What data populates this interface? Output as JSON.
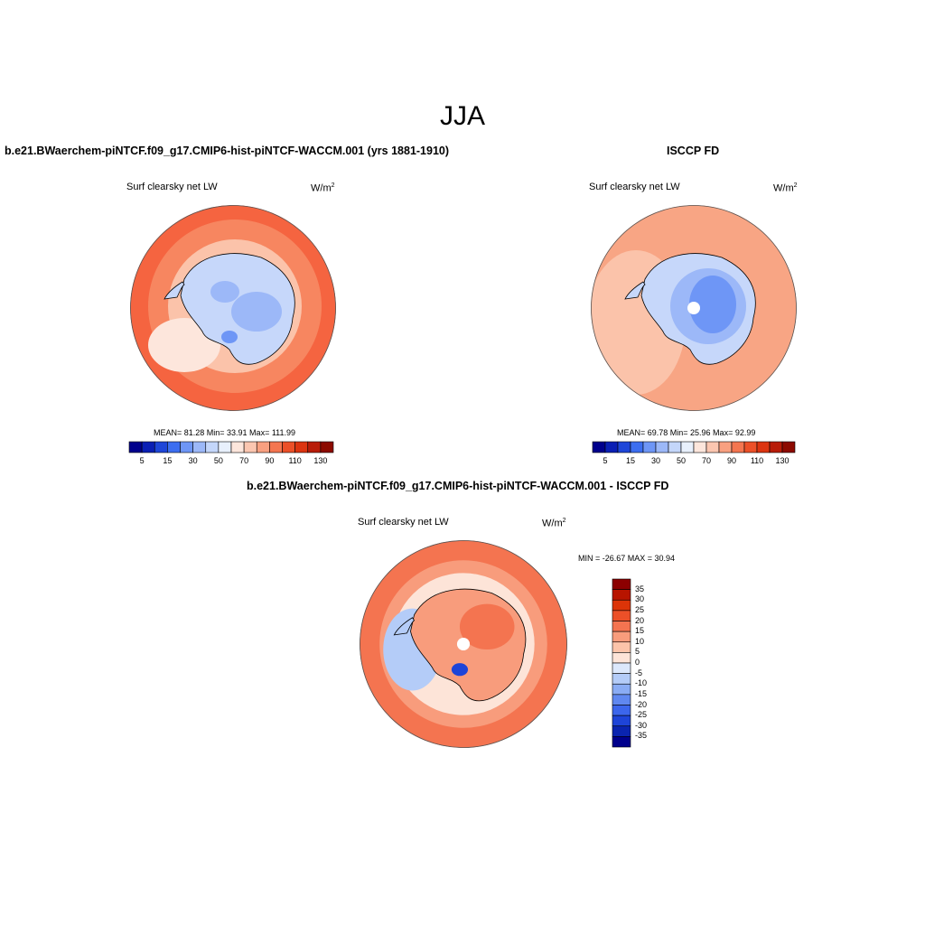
{
  "title": "JJA",
  "panels": {
    "model": {
      "title": "b.e21.BWaerchem-piNTCF.f09_g17.CMIP6-hist-piNTCF-WACCM.001 (yrs 1881-1910)",
      "variable": "Surf clearsky net LW",
      "units_base": "W/m",
      "units_exp": "2",
      "stats": "MEAN=  81.28  Min=  33.91  Max= 111.99"
    },
    "obs": {
      "title": "ISCCP FD",
      "variable": "Surf clearsky net LW",
      "units_base": "W/m",
      "units_exp": "2",
      "stats": "MEAN=  69.78  Min=  25.96  Max=  92.99"
    },
    "diff": {
      "title": "b.e21.BWaerchem-piNTCF.f09_g17.CMIP6-hist-piNTCF-WACCM.001 - ISCCP FD",
      "variable": "Surf clearsky net LW",
      "units_base": "W/m",
      "units_exp": "2",
      "stats": "MIN = -26.67 MAX =  30.94"
    }
  },
  "colorbars": {
    "abs_colors": [
      "#00008c",
      "#0a1fb4",
      "#1e46d8",
      "#3c6ef0",
      "#6e96f6",
      "#9cb8f8",
      "#c4d6fa",
      "#e8f0fc",
      "#fde6dc",
      "#fbc6b0",
      "#f8a080",
      "#f47650",
      "#ec5028",
      "#dc3410",
      "#b81c08",
      "#8c0a00"
    ],
    "abs_tick_labels": [
      "5",
      "15",
      "30",
      "50",
      "70",
      "90",
      "110",
      "130"
    ],
    "diff_colors": [
      "#8c0000",
      "#b81400",
      "#dc3408",
      "#ec5028",
      "#f47450",
      "#f89c7c",
      "#fcc4aa",
      "#fde4d8",
      "#dce8fc",
      "#b4ccf8",
      "#8aacf4",
      "#6088f0",
      "#3c66ec",
      "#1e44d8",
      "#0a24b0",
      "#00008c"
    ],
    "diff_tick_labels": [
      "35",
      "30",
      "25",
      "20",
      "15",
      "10",
      "5",
      "0",
      "-5",
      "-10",
      "-15",
      "-20",
      "-25",
      "-30",
      "-35"
    ]
  },
  "map_colors": {
    "ocean_model": "#f07a56",
    "ocean_obs": "#f7a584",
    "ocean_diff": "#f39070",
    "ice_model": "#c6d7fa",
    "ice_obs": "#94b4f8",
    "ice_diff": "#f9b49a",
    "coast": "#000000",
    "outline": "#555555"
  }
}
